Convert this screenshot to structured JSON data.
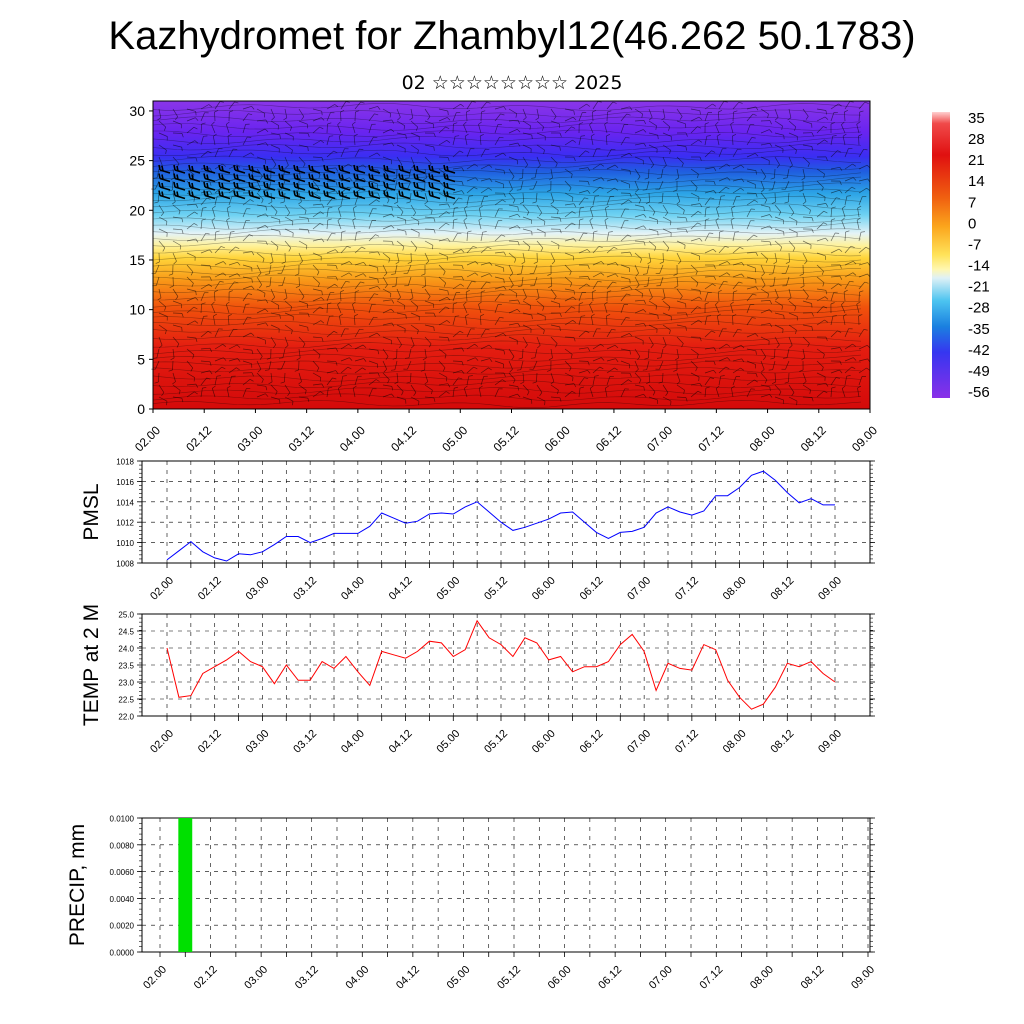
{
  "title": "Kazhydromet for Zhambyl12(46.262 50.1783)",
  "subtitle": "02 ☆☆☆☆☆☆☆☆ 2025",
  "x_tick_labels": [
    "02.00",
    "02.12",
    "03.00",
    "03.12",
    "04.00",
    "04.12",
    "05.00",
    "05.12",
    "06.00",
    "06.12",
    "07.00",
    "07.12",
    "08.00",
    "08.12",
    "09.00"
  ],
  "colors": {
    "pmsl_line": "#0000ff",
    "temp_line": "#ff0000",
    "precip_bar": "#00e000"
  },
  "chart_data": [
    {
      "type": "heatmap",
      "name": "cross-section",
      "y_ticks": [
        0,
        5,
        10,
        15,
        20,
        25,
        30
      ],
      "ylim": [
        0,
        31
      ],
      "colorbar_labels": [
        "35",
        "28",
        "21",
        "14",
        "7",
        "0",
        "-7",
        "-14",
        "-21",
        "-28",
        "-35",
        "-42",
        "-49",
        "-56"
      ],
      "colorbar_colors": [
        "#ffc8c8",
        "#f03030",
        "#e01010",
        "#f05010",
        "#f78a10",
        "#ffc020",
        "#fff07a",
        "#d8eef4",
        "#50c8f0",
        "#1a90e0",
        "#2060e0",
        "#3a3af0",
        "#5a20f0",
        "#8a2ee8"
      ]
    },
    {
      "type": "line",
      "name": "PMSL",
      "ylabel": "PMSL",
      "y_ticks": [
        "1008",
        "1010",
        "1012",
        "1014",
        "1016",
        "1018"
      ],
      "ylim": [
        1008,
        1018
      ],
      "x_range": [
        0,
        28
      ],
      "series": [
        {
          "values": [
            1008.3,
            1009.2,
            1010.1,
            1009.1,
            1008.5,
            1008.2,
            1008.9,
            1008.8,
            1009.1,
            1009.8,
            1010.6,
            1010.6,
            1010.0,
            1010.4,
            1010.9,
            1010.9,
            1010.9,
            1011.6,
            1012.9,
            1012.4,
            1011.9,
            1012.1,
            1012.8,
            1012.9,
            1012.8,
            1013.5,
            1014.0,
            1013.0,
            1012.0,
            1011.2,
            1011.5,
            1011.9,
            1012.3,
            1012.9,
            1013.0,
            1012.0,
            1011.0,
            1010.4,
            1011.0,
            1011.1,
            1011.5,
            1012.9,
            1013.5,
            1013.0,
            1012.7,
            1013.1,
            1014.6,
            1014.6,
            1015.4,
            1016.6,
            1017.0,
            1016.1,
            1014.9,
            1013.9,
            1014.3,
            1013.7,
            1013.7
          ]
        }
      ]
    },
    {
      "type": "line",
      "name": "TEMP",
      "ylabel": "TEMP at 2 M",
      "y_ticks": [
        "22.0",
        "22.5",
        "23.0",
        "23.5",
        "24.0",
        "24.5",
        "25.0"
      ],
      "ylim": [
        22.0,
        25.0
      ],
      "x_range": [
        0,
        28
      ],
      "series": [
        {
          "values": [
            24.0,
            22.55,
            22.6,
            23.25,
            23.45,
            23.65,
            23.9,
            23.6,
            23.45,
            22.95,
            23.5,
            23.05,
            23.05,
            23.6,
            23.4,
            23.75,
            23.3,
            22.9,
            23.9,
            23.8,
            23.7,
            23.9,
            24.2,
            24.15,
            23.75,
            23.95,
            24.8,
            24.3,
            24.1,
            23.75,
            24.3,
            24.15,
            23.65,
            23.75,
            23.3,
            23.45,
            23.45,
            23.6,
            24.1,
            24.4,
            23.9,
            22.75,
            23.55,
            23.4,
            23.35,
            24.1,
            23.95,
            23.05,
            22.55,
            22.2,
            22.35,
            22.85,
            23.55,
            23.45,
            23.6,
            23.25,
            23.0
          ]
        }
      ]
    },
    {
      "type": "bar",
      "name": "PRECIP",
      "ylabel": "PRECIP, mm",
      "y_ticks": [
        "0.0000",
        "0.0020",
        "0.0040",
        "0.0060",
        "0.0080",
        "0.0100"
      ],
      "ylim": [
        0,
        0.01
      ],
      "x_range": [
        0,
        28
      ],
      "bars": [
        {
          "x": 1,
          "value": 0.01
        }
      ]
    }
  ]
}
